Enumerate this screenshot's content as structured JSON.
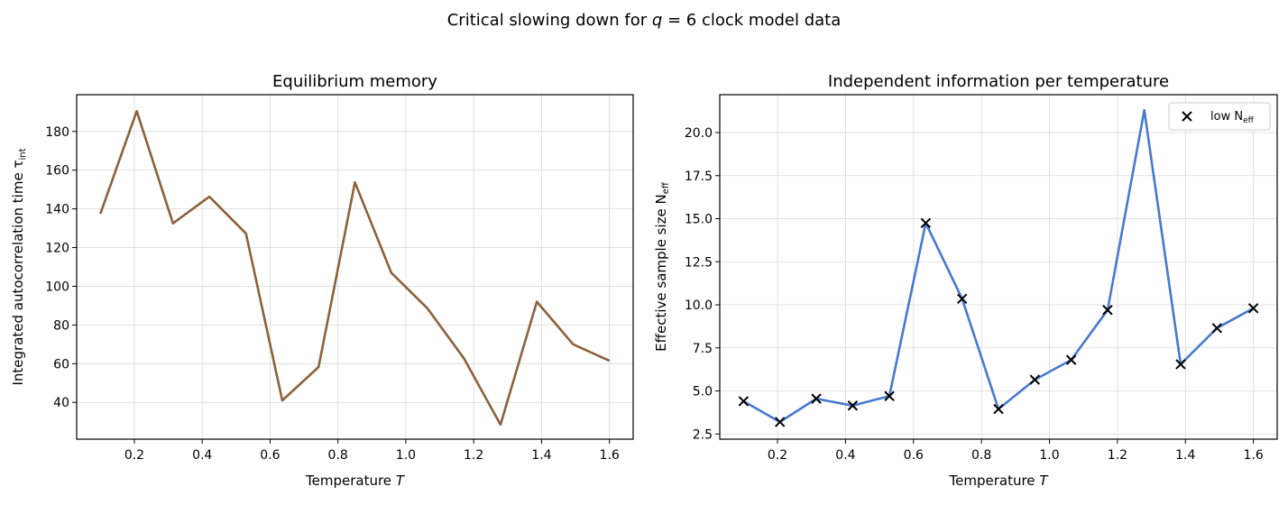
{
  "suptitle": {
    "prefix": "Critical slowing down for ",
    "var": "q",
    "rest": " = 6 clock model data"
  },
  "chart_data": [
    {
      "type": "line",
      "title": "Equilibrium memory",
      "xlabel_text": "Temperature ",
      "xlabel_var": "T",
      "ylabel_text": "Integrated autocorrelation time τ",
      "ylabel_sub": "int",
      "xlim": [
        0.03,
        1.67
      ],
      "ylim": [
        21,
        199
      ],
      "xticks": [
        "0.2",
        "0.4",
        "0.6",
        "0.8",
        "1.0",
        "1.2",
        "1.4",
        "1.6"
      ],
      "xtick_values": [
        0.2,
        0.4,
        0.6,
        0.8,
        1.0,
        1.2,
        1.4,
        1.6
      ],
      "yticks": [
        "40",
        "60",
        "80",
        "100",
        "120",
        "140",
        "160",
        "180"
      ],
      "ytick_values": [
        40,
        60,
        80,
        100,
        120,
        140,
        160,
        180
      ],
      "grid": true,
      "series": [
        {
          "color": "#8c613c",
          "x": [
            0.1,
            0.207,
            0.314,
            0.421,
            0.529,
            0.636,
            0.743,
            0.85,
            0.957,
            1.064,
            1.171,
            1.279,
            1.386,
            1.493,
            1.6
          ],
          "y": [
            137.5,
            190.5,
            132.5,
            146.3,
            127.3,
            41.0,
            58.3,
            153.7,
            107.0,
            88.5,
            62.8,
            28.5,
            92.0,
            70.0,
            61.5
          ]
        }
      ]
    },
    {
      "type": "line",
      "title": "Independent information per temperature",
      "xlabel_text": "Temperature ",
      "xlabel_var": "T",
      "ylabel_text": "Effective sample size N",
      "ylabel_sub": "eff",
      "xlim": [
        0.03,
        1.67
      ],
      "ylim": [
        2.2,
        22.2
      ],
      "xticks": [
        "0.2",
        "0.4",
        "0.6",
        "0.8",
        "1.0",
        "1.2",
        "1.4",
        "1.6"
      ],
      "xtick_values": [
        0.2,
        0.4,
        0.6,
        0.8,
        1.0,
        1.2,
        1.4,
        1.6
      ],
      "yticks": [
        "2.5",
        "5.0",
        "7.5",
        "10.0",
        "12.5",
        "15.0",
        "17.5",
        "20.0"
      ],
      "ytick_values": [
        2.5,
        5.0,
        7.5,
        10.0,
        12.5,
        15.0,
        17.5,
        20.0
      ],
      "grid": true,
      "legend": {
        "placement": "top-right",
        "label_text": "low N",
        "label_sub": "eff"
      },
      "series": [
        {
          "color": "#4878cf",
          "x": [
            0.1,
            0.207,
            0.314,
            0.421,
            0.529,
            0.636,
            0.743,
            0.85,
            0.957,
            1.064,
            1.171,
            1.279,
            1.386,
            1.493,
            1.6
          ],
          "y": [
            4.4,
            3.2,
            4.55,
            4.15,
            4.7,
            14.75,
            10.35,
            3.95,
            5.65,
            6.8,
            9.7,
            21.3,
            6.55,
            8.65,
            9.8
          ]
        }
      ],
      "markers": {
        "color": "#000000",
        "symbol": "x",
        "x": [
          0.1,
          0.207,
          0.314,
          0.421,
          0.529,
          0.636,
          0.743,
          0.85,
          0.957,
          1.064,
          1.171,
          1.386,
          1.493,
          1.6
        ],
        "y": [
          4.4,
          3.2,
          4.55,
          4.15,
          4.7,
          14.75,
          10.35,
          3.95,
          5.65,
          6.8,
          9.7,
          6.55,
          8.65,
          9.8
        ]
      }
    }
  ]
}
